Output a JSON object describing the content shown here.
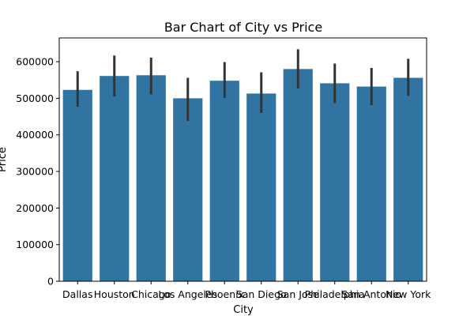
{
  "chart_data": {
    "type": "bar",
    "title": "Bar Chart of City vs Price",
    "xlabel": "City",
    "ylabel": "Price",
    "categories": [
      "Dallas",
      "Houston",
      "Chicago",
      "Los Angeles",
      "Phoenix",
      "San Diego",
      "San Jose",
      "Philadelphia",
      "San Antonio",
      "New York"
    ],
    "values": [
      523000,
      561000,
      563000,
      500000,
      548000,
      513000,
      580000,
      541000,
      532000,
      556000
    ],
    "error_low": [
      477000,
      505000,
      511000,
      438000,
      501000,
      460000,
      527000,
      487000,
      481000,
      507000
    ],
    "error_high": [
      574000,
      617000,
      611000,
      556000,
      599000,
      571000,
      634000,
      595000,
      583000,
      608000
    ],
    "ylim": [
      0,
      665000
    ],
    "yticks": [
      0,
      100000,
      200000,
      300000,
      400000,
      500000,
      600000
    ],
    "bar_color": "#3274a1",
    "error_color": "#333333",
    "grid": false,
    "legend": "none"
  }
}
